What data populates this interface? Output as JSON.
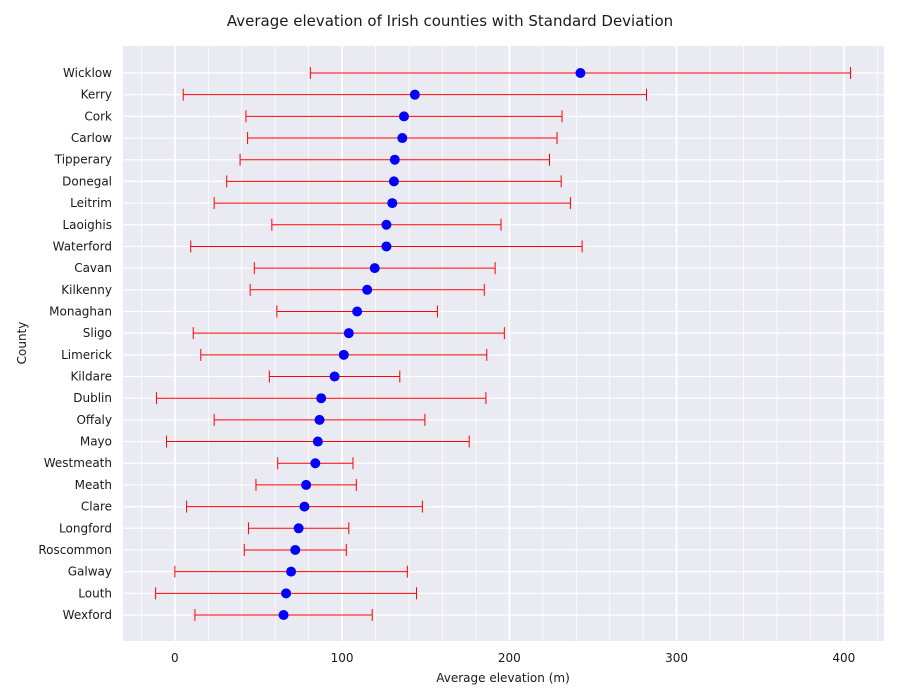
{
  "chart_data": {
    "type": "scatter",
    "title": "Average elevation of Irish counties with Standard Deviation",
    "xlabel": "Average elevation (m)",
    "ylabel": "County",
    "xlim": [
      -31,
      424
    ],
    "xticks": [
      0,
      100,
      200,
      300,
      400
    ],
    "grid": true,
    "marker_color": "#0000ff",
    "errorbar_color": "#ff0000",
    "background_color": "#eaeaf2",
    "points": [
      {
        "county": "Wicklow",
        "mean": 242.5,
        "std": 161.5
      },
      {
        "county": "Kerry",
        "mean": 143.5,
        "std": 138.5
      },
      {
        "county": "Cork",
        "mean": 137,
        "std": 94.5
      },
      {
        "county": "Carlow",
        "mean": 136,
        "std": 92.5
      },
      {
        "county": "Tipperary",
        "mean": 131.5,
        "std": 92.5
      },
      {
        "county": "Donegal",
        "mean": 131,
        "std": 100
      },
      {
        "county": "Leitrim",
        "mean": 130,
        "std": 106.5
      },
      {
        "county": "Laoighis",
        "mean": 126.5,
        "std": 68.5
      },
      {
        "county": "Waterford",
        "mean": 126.5,
        "std": 117
      },
      {
        "county": "Cavan",
        "mean": 119.5,
        "std": 72
      },
      {
        "county": "Kilkenny",
        "mean": 115,
        "std": 70
      },
      {
        "county": "Monaghan",
        "mean": 109,
        "std": 48
      },
      {
        "county": "Sligo",
        "mean": 104,
        "std": 93
      },
      {
        "county": "Limerick",
        "mean": 101,
        "std": 85.5
      },
      {
        "county": "Kildare",
        "mean": 95.5,
        "std": 39
      },
      {
        "county": "Dublin",
        "mean": 87.5,
        "std": 98.5
      },
      {
        "county": "Offaly",
        "mean": 86.5,
        "std": 63
      },
      {
        "county": "Mayo",
        "mean": 85.5,
        "std": 90.5
      },
      {
        "county": "Westmeath",
        "mean": 84,
        "std": 22.5
      },
      {
        "county": "Meath",
        "mean": 78.5,
        "std": 30
      },
      {
        "county": "Clare",
        "mean": 77.5,
        "std": 70.5
      },
      {
        "county": "Longford",
        "mean": 74,
        "std": 30
      },
      {
        "county": "Roscommon",
        "mean": 72,
        "std": 30.5
      },
      {
        "county": "Galway",
        "mean": 69.5,
        "std": 69.5
      },
      {
        "county": "Louth",
        "mean": 66.5,
        "std": 78
      },
      {
        "county": "Wexford",
        "mean": 65,
        "std": 53
      }
    ]
  }
}
